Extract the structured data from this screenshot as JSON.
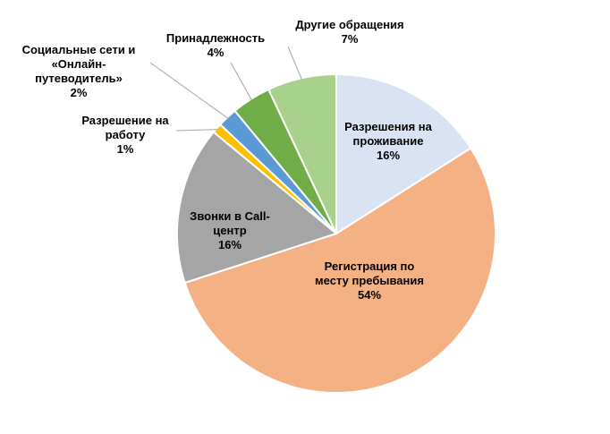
{
  "chart_data": {
    "type": "pie",
    "categories": [
      "Разрешения на\nпроживание",
      "Регистрация по\nместу пребывания",
      "Звонки в Call-\nцентр",
      "Разрешение на\nработу",
      "Социальные сети и\n«Онлайн-\nпутеводитель»",
      "Принадлежность",
      "Другие обращения"
    ],
    "values": [
      16,
      54,
      16,
      1,
      2,
      4,
      7
    ],
    "value_labels": [
      "16%",
      "54%",
      "16%",
      "1%",
      "2%",
      "4%",
      "7%"
    ],
    "colors": [
      "#dae3f3",
      "#f4b183",
      "#a5a5a5",
      "#ffc000",
      "#5b9bd5",
      "#70ad47",
      "#a9d18e"
    ]
  }
}
